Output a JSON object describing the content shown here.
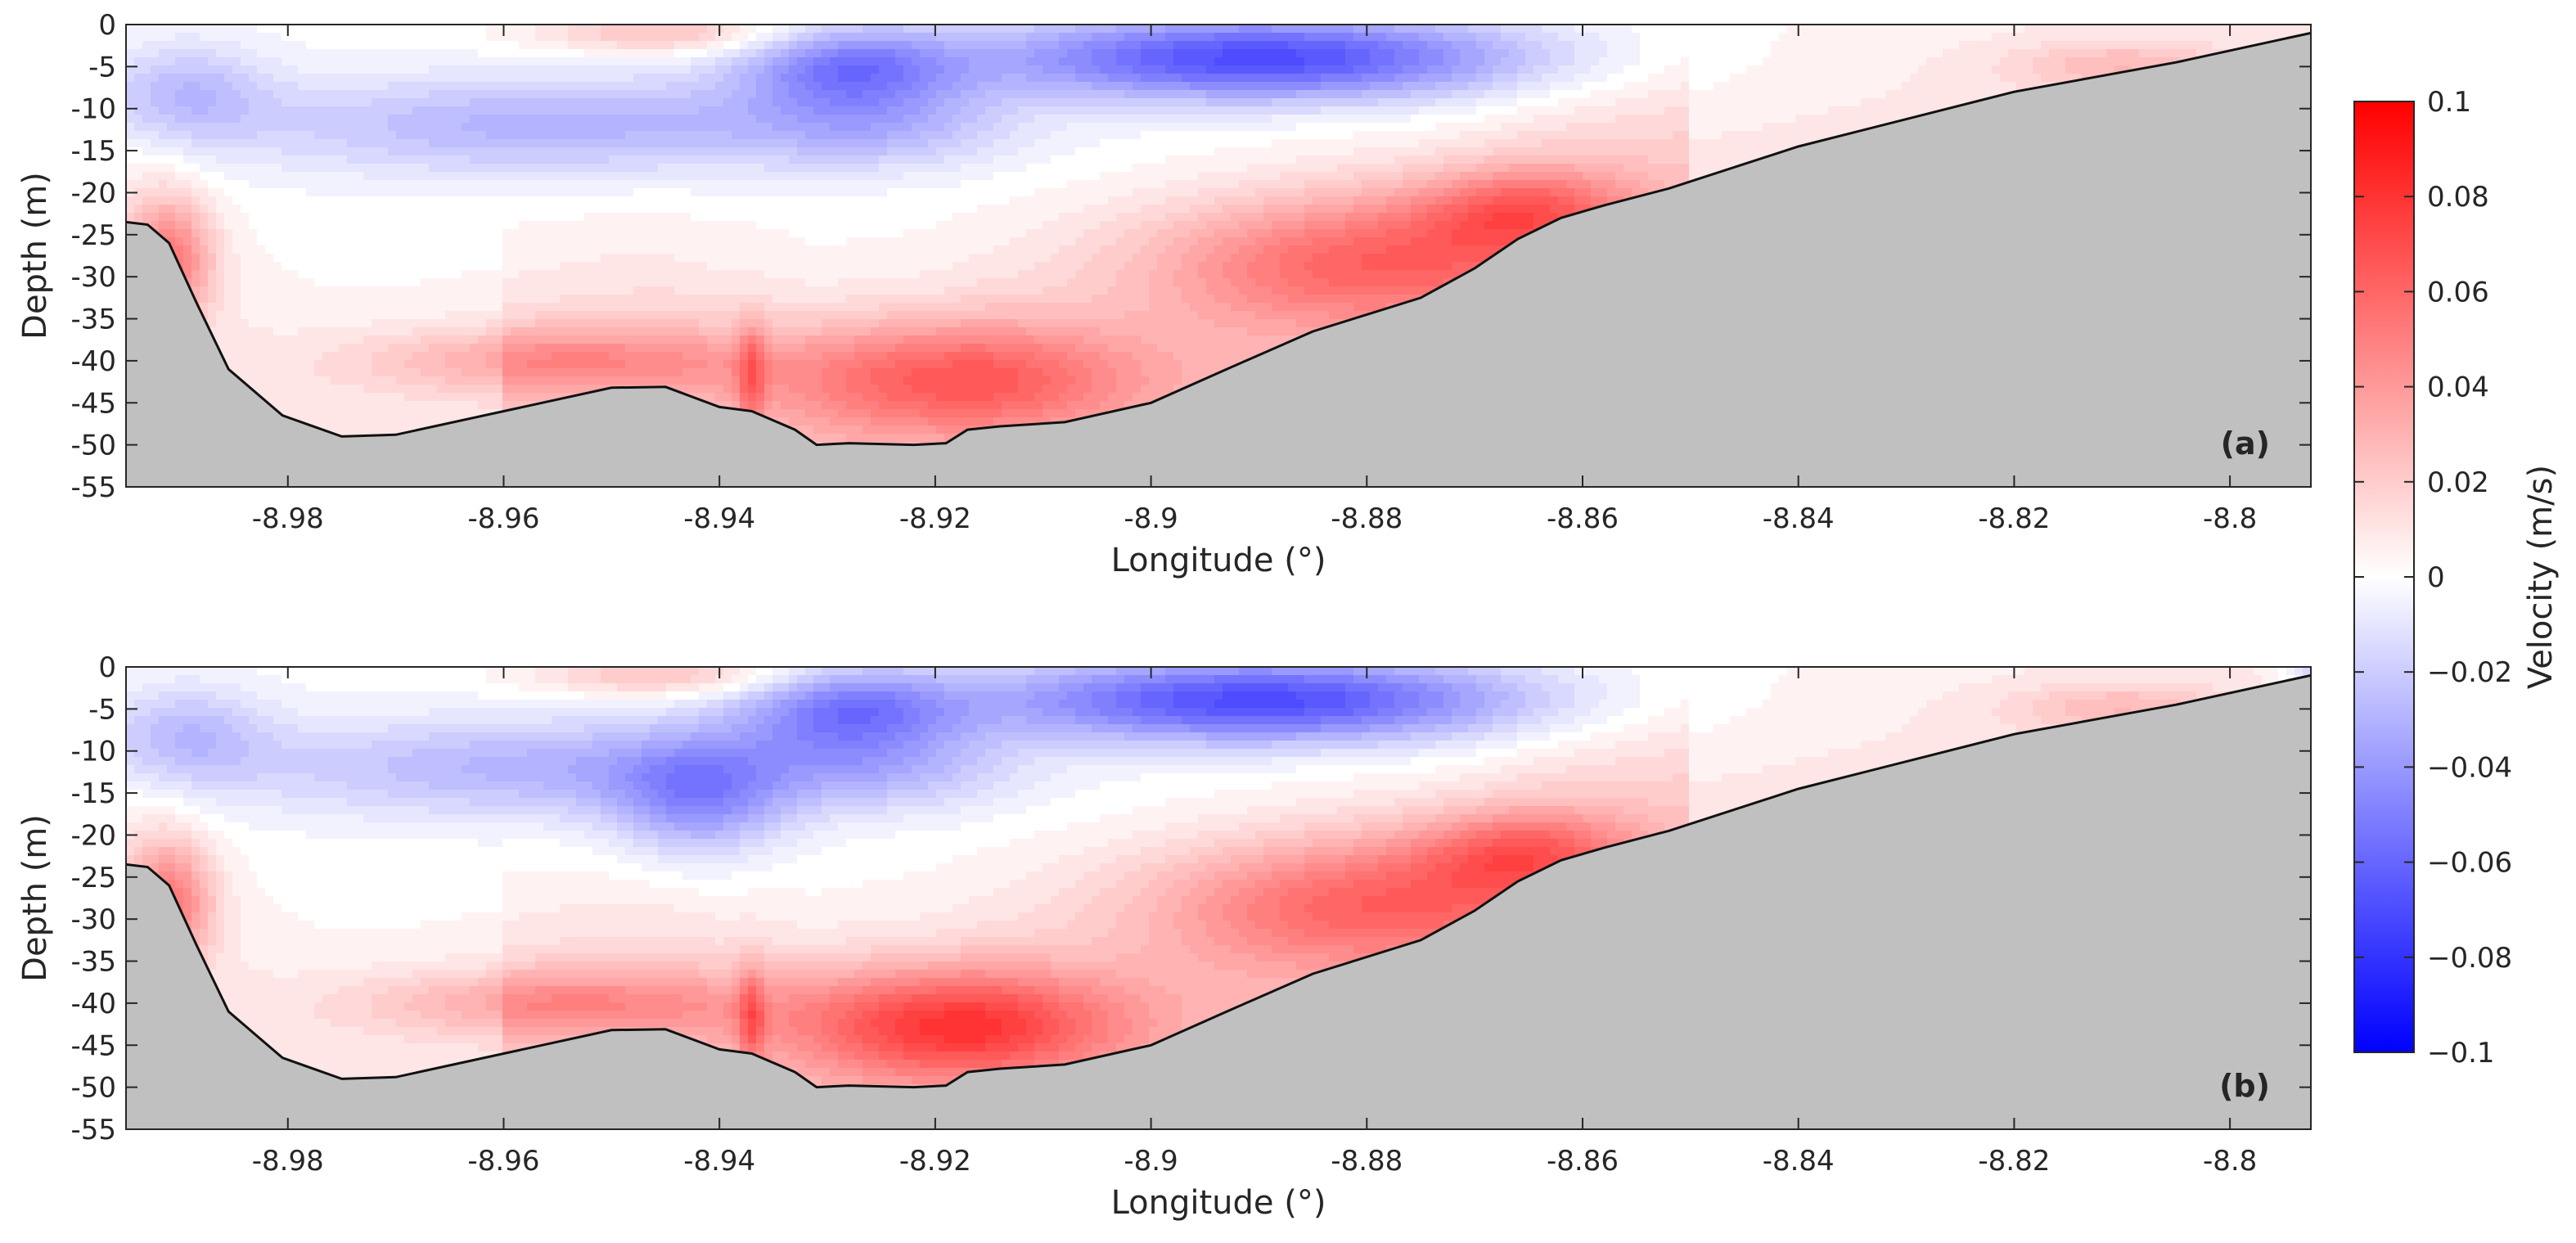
{
  "chart_data": [
    {
      "type": "heatmap",
      "panel_label": "(a)",
      "xlabel": "Longitude (°)",
      "ylabel": "Depth (m)",
      "xlim": [
        -8.995,
        -8.7925
      ],
      "ylim": [
        -55,
        0
      ],
      "xticks": [
        -8.98,
        -8.96,
        -8.94,
        -8.92,
        -8.9,
        -8.88,
        -8.86,
        -8.84,
        -8.82,
        -8.8
      ],
      "xtick_labels": [
        "-8.98",
        "-8.96",
        "-8.94",
        "-8.92",
        "-8.9",
        "-8.88",
        "-8.86",
        "-8.84",
        "-8.82",
        "-8.8"
      ],
      "yticks": [
        0,
        -5,
        -10,
        -15,
        -20,
        -25,
        -30,
        -35,
        -40,
        -45,
        -50,
        -55
      ],
      "ytick_labels": [
        "0",
        "-5",
        "-10",
        "-15",
        "-20",
        "-25",
        "-30",
        "-35",
        "-40",
        "-45",
        "-50",
        "-55"
      ],
      "variant": "a"
    },
    {
      "type": "heatmap",
      "panel_label": "(b)",
      "xlabel": "Longitude (°)",
      "ylabel": "Depth (m)",
      "xlim": [
        -8.995,
        -8.7925
      ],
      "ylim": [
        -55,
        0
      ],
      "xticks": [
        -8.98,
        -8.96,
        -8.94,
        -8.92,
        -8.9,
        -8.88,
        -8.86,
        -8.84,
        -8.82,
        -8.8
      ],
      "xtick_labels": [
        "-8.98",
        "-8.96",
        "-8.94",
        "-8.92",
        "-8.9",
        "-8.88",
        "-8.86",
        "-8.84",
        "-8.82",
        "-8.8"
      ],
      "yticks": [
        0,
        -5,
        -10,
        -15,
        -20,
        -25,
        -30,
        -35,
        -40,
        -45,
        -50,
        -55
      ],
      "ytick_labels": [
        "0",
        "-5",
        "-10",
        "-15",
        "-20",
        "-25",
        "-30",
        "-35",
        "-40",
        "-45",
        "-50",
        "-55"
      ],
      "variant": "b"
    }
  ],
  "bathymetry": {
    "lon": [
      -8.995,
      -8.993,
      -8.991,
      -8.9885,
      -8.9855,
      -8.9805,
      -8.975,
      -8.97,
      -8.96,
      -8.95,
      -8.945,
      -8.94,
      -8.937,
      -8.933,
      -8.931,
      -8.928,
      -8.922,
      -8.919,
      -8.917,
      -8.914,
      -8.908,
      -8.9,
      -8.893,
      -8.885,
      -8.875,
      -8.87,
      -8.866,
      -8.862,
      -8.858,
      -8.852,
      -8.84,
      -8.82,
      -8.805,
      -8.7925
    ],
    "depth": [
      -23.5,
      -23.8,
      -26,
      -33,
      -41,
      -46.5,
      -49,
      -48.8,
      -46,
      -43.2,
      -43.1,
      -45.5,
      -46,
      -48.2,
      -50,
      -49.8,
      -50,
      -49.8,
      -48.2,
      -47.8,
      -47.3,
      -45,
      -41,
      -36.5,
      -32.5,
      -29,
      -25.5,
      -23,
      -21.5,
      -19.5,
      -14.5,
      -8,
      -4.5,
      -1
    ]
  },
  "colorbar": {
    "label": "Velocity (m/s)",
    "min": -0.1,
    "max": 0.1,
    "ticks": [
      0.1,
      0.08,
      0.06,
      0.04,
      0.02,
      0,
      -0.02,
      -0.04,
      -0.06,
      -0.08,
      -0.1
    ],
    "tick_labels": [
      "0.1",
      "0.08",
      "0.06",
      "0.04",
      "0.02",
      "0",
      "−0.02",
      "−0.04",
      "−0.06",
      "−0.08",
      "−0.1"
    ],
    "colormap": [
      "#0000ff",
      "#ffffff",
      "#ff0000"
    ]
  },
  "colors": {
    "seabed": "#c0c0c0",
    "axis": "#262626"
  }
}
